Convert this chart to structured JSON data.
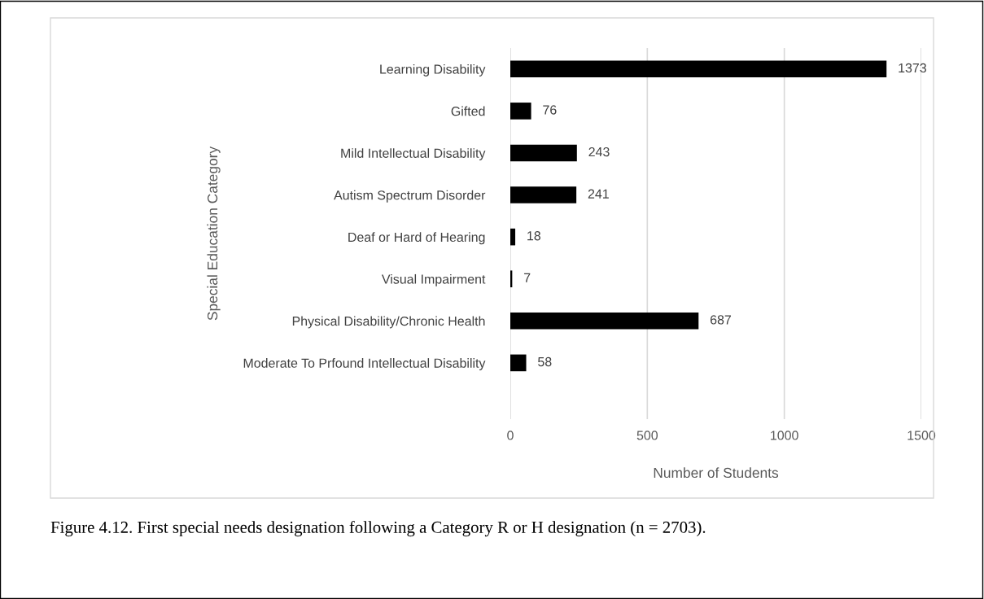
{
  "chart_data": {
    "type": "bar",
    "orientation": "horizontal",
    "categories": [
      "Learning Disability",
      "Gifted",
      "Mild Intellectual Disability",
      "Autism Spectrum Disorder",
      "Deaf or Hard of Hearing",
      "Visual Impairment",
      "Physical Disability/Chronic Health",
      "Moderate To Prfound Intellectual Disability"
    ],
    "values": [
      1373,
      76,
      243,
      241,
      18,
      7,
      687,
      58
    ],
    "color": "#000000",
    "xlim": [
      0,
      1500
    ],
    "xticks": [
      0,
      500,
      1000,
      1500
    ],
    "xlabel": "Number of Students",
    "ylabel": "Special Education Category",
    "grid": "x",
    "data_labels": true,
    "legend": false,
    "annotations": [
      "Figure 4.12. First special needs designation following a Category R or H designation (n = 2703)."
    ]
  }
}
